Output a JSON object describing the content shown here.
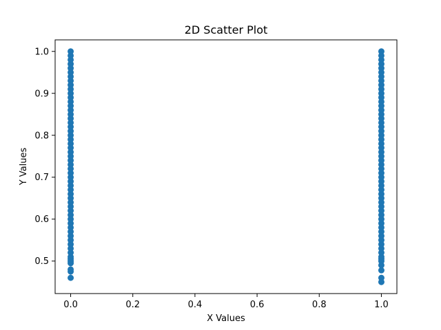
{
  "chart_data": {
    "type": "scatter",
    "title": "2D Scatter Plot",
    "xlabel": "X Values",
    "ylabel": "Y Values",
    "xlim": [
      -0.05,
      1.05
    ],
    "ylim": [
      0.4225,
      1.0275
    ],
    "xticks": [
      0.0,
      0.2,
      0.4,
      0.6,
      0.8,
      1.0
    ],
    "xtick_labels": [
      "0.0",
      "0.2",
      "0.4",
      "0.6",
      "0.8",
      "1.0"
    ],
    "yticks": [
      0.5,
      0.6,
      0.7,
      0.8,
      0.9,
      1.0
    ],
    "ytick_labels": [
      "0.5",
      "0.6",
      "0.7",
      "0.8",
      "0.9",
      "1.0"
    ],
    "grid": false,
    "marker_color": "#1f77b4",
    "series": [
      {
        "points": [
          [
            0,
            0.46
          ],
          [
            0,
            0.475
          ],
          [
            0,
            0.48
          ],
          [
            0,
            0.495
          ],
          [
            0,
            0.5
          ],
          [
            0,
            0.505
          ],
          [
            0,
            0.51
          ],
          [
            0,
            0.52
          ],
          [
            0,
            0.53
          ],
          [
            0,
            0.54
          ],
          [
            0,
            0.55
          ],
          [
            0,
            0.56
          ],
          [
            0,
            0.57
          ],
          [
            0,
            0.58
          ],
          [
            0,
            0.59
          ],
          [
            0,
            0.6
          ],
          [
            0,
            0.61
          ],
          [
            0,
            0.62
          ],
          [
            0,
            0.63
          ],
          [
            0,
            0.64
          ],
          [
            0,
            0.65
          ],
          [
            0,
            0.66
          ],
          [
            0,
            0.67
          ],
          [
            0,
            0.68
          ],
          [
            0,
            0.69
          ],
          [
            0,
            0.7
          ],
          [
            0,
            0.71
          ],
          [
            0,
            0.72
          ],
          [
            0,
            0.73
          ],
          [
            0,
            0.74
          ],
          [
            0,
            0.75
          ],
          [
            0,
            0.76
          ],
          [
            0,
            0.77
          ],
          [
            0,
            0.78
          ],
          [
            0,
            0.79
          ],
          [
            0,
            0.8
          ],
          [
            0,
            0.81
          ],
          [
            0,
            0.82
          ],
          [
            0,
            0.83
          ],
          [
            0,
            0.84
          ],
          [
            0,
            0.85
          ],
          [
            0,
            0.86
          ],
          [
            0,
            0.87
          ],
          [
            0,
            0.88
          ],
          [
            0,
            0.89
          ],
          [
            0,
            0.9
          ],
          [
            0,
            0.91
          ],
          [
            0,
            0.92
          ],
          [
            0,
            0.93
          ],
          [
            0,
            0.94
          ],
          [
            0,
            0.95
          ],
          [
            0,
            0.96
          ],
          [
            0,
            0.97
          ],
          [
            0,
            0.98
          ],
          [
            0,
            0.99
          ],
          [
            0,
            1.0
          ],
          [
            1,
            0.45
          ],
          [
            1,
            0.46
          ],
          [
            1,
            0.478
          ],
          [
            1,
            0.49
          ],
          [
            1,
            0.5
          ],
          [
            1,
            0.505
          ],
          [
            1,
            0.51
          ],
          [
            1,
            0.52
          ],
          [
            1,
            0.53
          ],
          [
            1,
            0.54
          ],
          [
            1,
            0.55
          ],
          [
            1,
            0.56
          ],
          [
            1,
            0.57
          ],
          [
            1,
            0.58
          ],
          [
            1,
            0.59
          ],
          [
            1,
            0.6
          ],
          [
            1,
            0.61
          ],
          [
            1,
            0.62
          ],
          [
            1,
            0.63
          ],
          [
            1,
            0.64
          ],
          [
            1,
            0.65
          ],
          [
            1,
            0.66
          ],
          [
            1,
            0.67
          ],
          [
            1,
            0.68
          ],
          [
            1,
            0.69
          ],
          [
            1,
            0.7
          ],
          [
            1,
            0.71
          ],
          [
            1,
            0.72
          ],
          [
            1,
            0.73
          ],
          [
            1,
            0.74
          ],
          [
            1,
            0.75
          ],
          [
            1,
            0.76
          ],
          [
            1,
            0.77
          ],
          [
            1,
            0.78
          ],
          [
            1,
            0.79
          ],
          [
            1,
            0.8
          ],
          [
            1,
            0.81
          ],
          [
            1,
            0.82
          ],
          [
            1,
            0.83
          ],
          [
            1,
            0.84
          ],
          [
            1,
            0.85
          ],
          [
            1,
            0.86
          ],
          [
            1,
            0.87
          ],
          [
            1,
            0.88
          ],
          [
            1,
            0.89
          ],
          [
            1,
            0.9
          ],
          [
            1,
            0.91
          ],
          [
            1,
            0.92
          ],
          [
            1,
            0.93
          ],
          [
            1,
            0.94
          ],
          [
            1,
            0.95
          ],
          [
            1,
            0.96
          ],
          [
            1,
            0.97
          ],
          [
            1,
            0.98
          ],
          [
            1,
            0.99
          ],
          [
            1,
            1.0
          ]
        ]
      }
    ]
  }
}
